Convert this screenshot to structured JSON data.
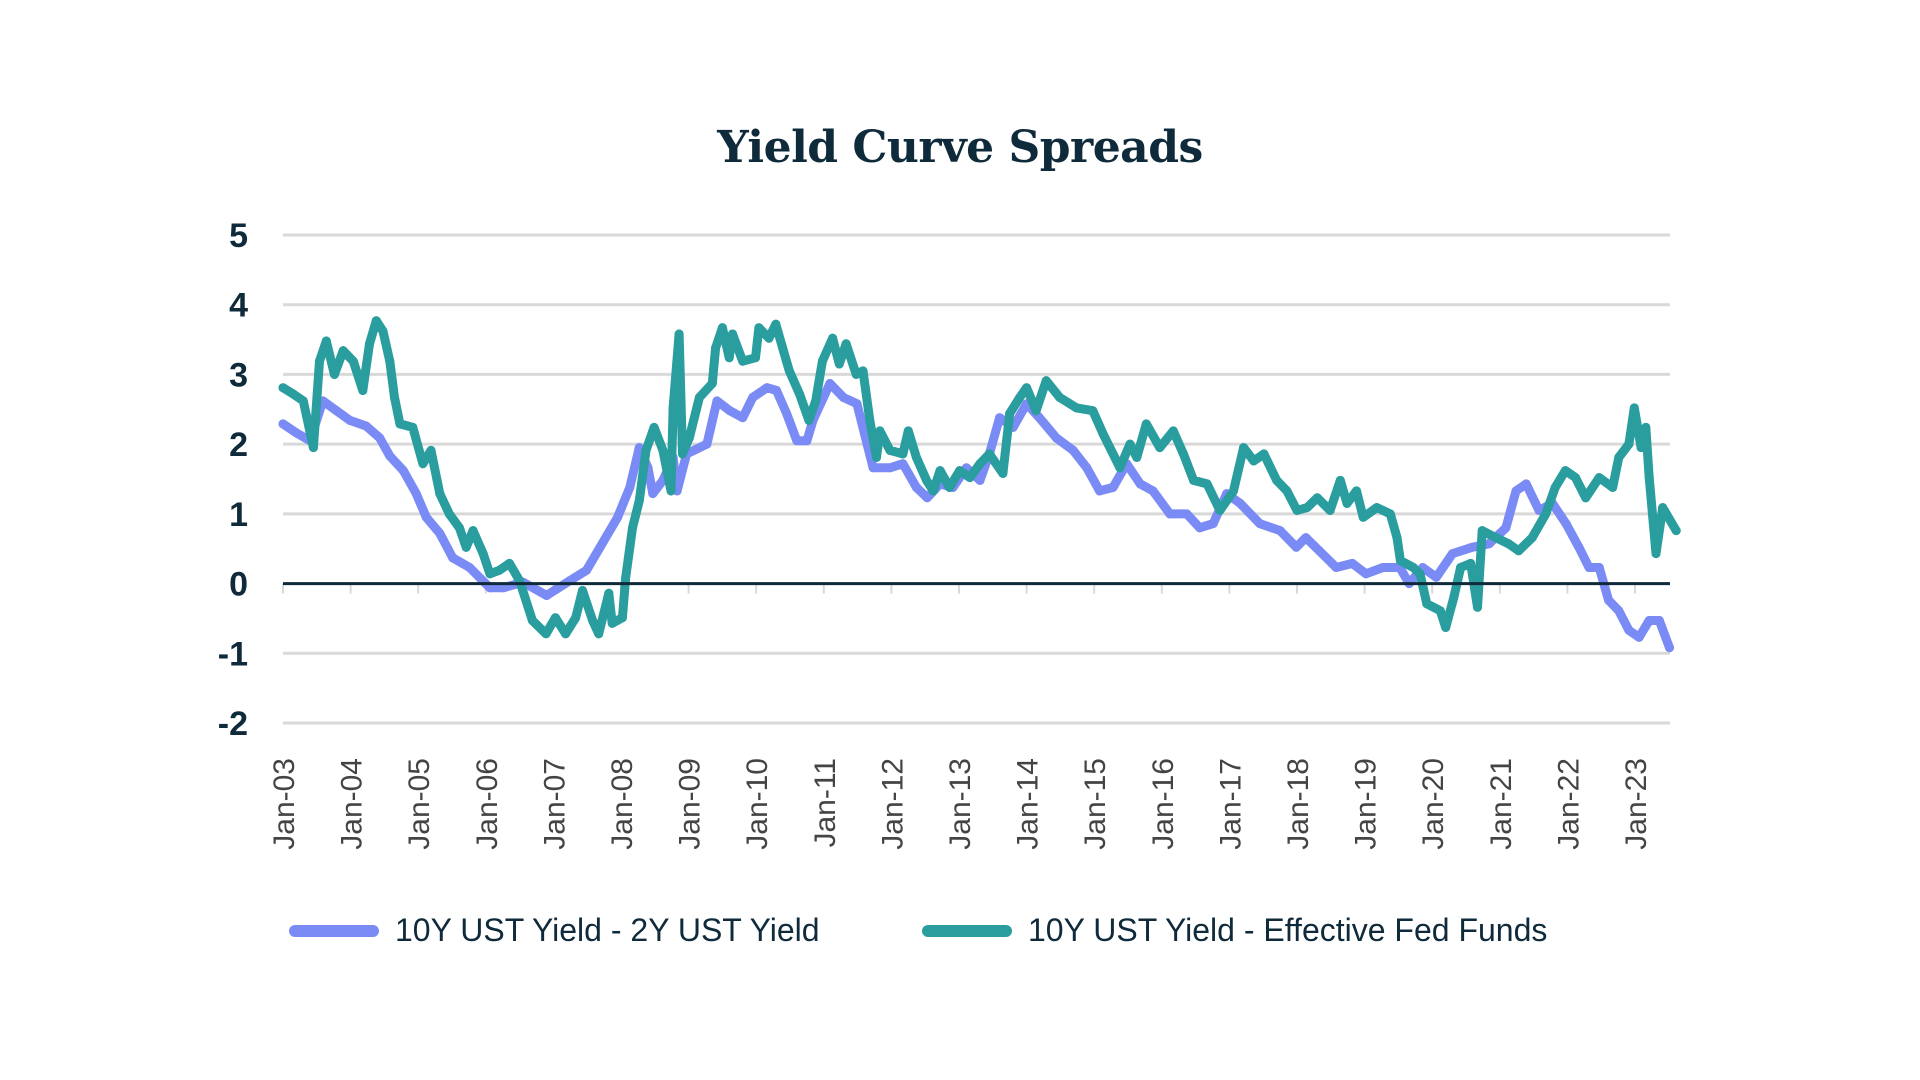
{
  "chart_data": {
    "type": "line",
    "title": "Yield Curve Spreads",
    "xlabel": "",
    "ylabel": "",
    "ylim": [
      -2,
      5
    ],
    "xlim": [
      2003.0,
      2023.55
    ],
    "yticks": [
      "5",
      "4",
      "3",
      "2",
      "1",
      "0",
      "-1",
      "-2"
    ],
    "ytick_values": [
      5,
      4,
      3,
      2,
      1,
      0,
      -1,
      -2
    ],
    "xticks": [
      "Jan-03",
      "Jan-04",
      "Jan-05",
      "Jan-06",
      "Jan-07",
      "Jan-08",
      "Jan-09",
      "Jan-10",
      "Jan-11",
      "Jan-12",
      "Jan-13",
      "Jan-14",
      "Jan-15",
      "Jan-16",
      "Jan-17",
      "Jan-18",
      "Jan-19",
      "Jan-20",
      "Jan-21",
      "Jan-22",
      "Jan-23"
    ],
    "xtick_values": [
      2003,
      2004,
      2005,
      2006,
      2007,
      2008,
      2009,
      2010,
      2011,
      2012,
      2013,
      2014,
      2015,
      2016,
      2017,
      2018,
      2019,
      2020,
      2021,
      2022,
      2023
    ],
    "grid": true,
    "zero_line": true,
    "legend_position": "bottom",
    "series": [
      {
        "name": "10Y UST Yield - 2Y UST Yield",
        "color": "#7B8BF5",
        "points": [
          [
            2003.0,
            2.29
          ],
          [
            2003.2,
            2.16
          ],
          [
            2003.4,
            2.05
          ],
          [
            2003.59,
            2.62
          ],
          [
            2003.79,
            2.48
          ],
          [
            2003.99,
            2.34
          ],
          [
            2004.23,
            2.26
          ],
          [
            2004.43,
            2.09
          ],
          [
            2004.58,
            1.83
          ],
          [
            2004.78,
            1.62
          ],
          [
            2004.97,
            1.29
          ],
          [
            2005.12,
            0.95
          ],
          [
            2005.32,
            0.72
          ],
          [
            2005.51,
            0.37
          ],
          [
            2005.76,
            0.23
          ],
          [
            2006.06,
            -0.06
          ],
          [
            2006.26,
            -0.06
          ],
          [
            2006.55,
            0.02
          ],
          [
            2006.9,
            -0.17
          ],
          [
            2007.24,
            0.04
          ],
          [
            2007.49,
            0.19
          ],
          [
            2007.69,
            0.52
          ],
          [
            2007.95,
            0.95
          ],
          [
            2008.13,
            1.38
          ],
          [
            2008.27,
            1.95
          ],
          [
            2008.4,
            1.66
          ],
          [
            2008.47,
            1.29
          ],
          [
            2008.62,
            1.48
          ],
          [
            2008.77,
            1.81
          ],
          [
            2008.83,
            1.33
          ],
          [
            2008.97,
            1.86
          ],
          [
            2009.27,
            2.0
          ],
          [
            2009.42,
            2.62
          ],
          [
            2009.61,
            2.48
          ],
          [
            2009.8,
            2.38
          ],
          [
            2009.95,
            2.67
          ],
          [
            2010.16,
            2.81
          ],
          [
            2010.3,
            2.77
          ],
          [
            2010.45,
            2.44
          ],
          [
            2010.6,
            2.05
          ],
          [
            2010.75,
            2.05
          ],
          [
            2010.84,
            2.34
          ],
          [
            2011.09,
            2.87
          ],
          [
            2011.29,
            2.67
          ],
          [
            2011.49,
            2.58
          ],
          [
            2011.64,
            2.0
          ],
          [
            2011.73,
            1.66
          ],
          [
            2011.98,
            1.66
          ],
          [
            2012.17,
            1.72
          ],
          [
            2012.37,
            1.38
          ],
          [
            2012.53,
            1.23
          ],
          [
            2012.72,
            1.43
          ],
          [
            2012.91,
            1.38
          ],
          [
            2013.11,
            1.66
          ],
          [
            2013.31,
            1.48
          ],
          [
            2013.45,
            1.86
          ],
          [
            2013.6,
            2.38
          ],
          [
            2013.8,
            2.24
          ],
          [
            2014.0,
            2.58
          ],
          [
            2014.19,
            2.38
          ],
          [
            2014.44,
            2.09
          ],
          [
            2014.69,
            1.91
          ],
          [
            2014.89,
            1.66
          ],
          [
            2015.08,
            1.33
          ],
          [
            2015.28,
            1.38
          ],
          [
            2015.48,
            1.72
          ],
          [
            2015.68,
            1.43
          ],
          [
            2015.87,
            1.33
          ],
          [
            2016.12,
            1.0
          ],
          [
            2016.37,
            1.0
          ],
          [
            2016.56,
            0.8
          ],
          [
            2016.76,
            0.86
          ],
          [
            2016.96,
            1.29
          ],
          [
            2017.16,
            1.15
          ],
          [
            2017.45,
            0.86
          ],
          [
            2017.75,
            0.76
          ],
          [
            2017.99,
            0.52
          ],
          [
            2018.13,
            0.66
          ],
          [
            2018.33,
            0.47
          ],
          [
            2018.58,
            0.23
          ],
          [
            2018.82,
            0.29
          ],
          [
            2019.02,
            0.14
          ],
          [
            2019.27,
            0.23
          ],
          [
            2019.52,
            0.23
          ],
          [
            2019.66,
            0.0
          ],
          [
            2019.86,
            0.23
          ],
          [
            2020.06,
            0.09
          ],
          [
            2020.3,
            0.43
          ],
          [
            2020.59,
            0.52
          ],
          [
            2020.84,
            0.57
          ],
          [
            2021.09,
            0.8
          ],
          [
            2021.24,
            1.33
          ],
          [
            2021.39,
            1.43
          ],
          [
            2021.58,
            1.05
          ],
          [
            2021.78,
            1.15
          ],
          [
            2021.98,
            0.86
          ],
          [
            2022.17,
            0.52
          ],
          [
            2022.32,
            0.23
          ],
          [
            2022.47,
            0.23
          ],
          [
            2022.61,
            -0.24
          ],
          [
            2022.76,
            -0.39
          ],
          [
            2022.91,
            -0.67
          ],
          [
            2023.06,
            -0.77
          ],
          [
            2023.21,
            -0.53
          ],
          [
            2023.36,
            -0.53
          ],
          [
            2023.51,
            -0.92
          ]
        ]
      },
      {
        "name": "10Y UST Yield - Effective Fed Funds",
        "color": "#2A9D9F",
        "points": [
          [
            2003.0,
            2.81
          ],
          [
            2003.15,
            2.72
          ],
          [
            2003.3,
            2.62
          ],
          [
            2003.45,
            1.95
          ],
          [
            2003.54,
            3.19
          ],
          [
            2003.64,
            3.48
          ],
          [
            2003.76,
            3.0
          ],
          [
            2003.89,
            3.34
          ],
          [
            2004.04,
            3.19
          ],
          [
            2004.18,
            2.77
          ],
          [
            2004.28,
            3.44
          ],
          [
            2004.38,
            3.77
          ],
          [
            2004.48,
            3.62
          ],
          [
            2004.58,
            3.19
          ],
          [
            2004.65,
            2.67
          ],
          [
            2004.73,
            2.29
          ],
          [
            2004.92,
            2.24
          ],
          [
            2005.07,
            1.72
          ],
          [
            2005.19,
            1.91
          ],
          [
            2005.32,
            1.29
          ],
          [
            2005.46,
            1.0
          ],
          [
            2005.61,
            0.8
          ],
          [
            2005.71,
            0.52
          ],
          [
            2005.81,
            0.76
          ],
          [
            2005.96,
            0.43
          ],
          [
            2006.06,
            0.14
          ],
          [
            2006.2,
            0.19
          ],
          [
            2006.35,
            0.29
          ],
          [
            2006.5,
            0.04
          ],
          [
            2006.69,
            -0.53
          ],
          [
            2006.89,
            -0.72
          ],
          [
            2007.03,
            -0.49
          ],
          [
            2007.18,
            -0.72
          ],
          [
            2007.33,
            -0.49
          ],
          [
            2007.43,
            -0.1
          ],
          [
            2007.58,
            -0.53
          ],
          [
            2007.67,
            -0.72
          ],
          [
            2007.82,
            -0.14
          ],
          [
            2007.87,
            -0.57
          ],
          [
            2008.02,
            -0.49
          ],
          [
            2008.07,
            0.09
          ],
          [
            2008.17,
            0.8
          ],
          [
            2008.27,
            1.19
          ],
          [
            2008.37,
            1.91
          ],
          [
            2008.49,
            2.24
          ],
          [
            2008.62,
            1.91
          ],
          [
            2008.74,
            1.33
          ],
          [
            2008.77,
            2.52
          ],
          [
            2008.86,
            3.58
          ],
          [
            2008.91,
            1.86
          ],
          [
            2009.01,
            2.09
          ],
          [
            2009.16,
            2.67
          ],
          [
            2009.35,
            2.87
          ],
          [
            2009.4,
            3.38
          ],
          [
            2009.5,
            3.67
          ],
          [
            2009.6,
            3.24
          ],
          [
            2009.65,
            3.58
          ],
          [
            2009.8,
            3.19
          ],
          [
            2009.99,
            3.24
          ],
          [
            2010.04,
            3.67
          ],
          [
            2010.19,
            3.52
          ],
          [
            2010.29,
            3.72
          ],
          [
            2010.39,
            3.38
          ],
          [
            2010.49,
            3.05
          ],
          [
            2010.64,
            2.72
          ],
          [
            2010.78,
            2.34
          ],
          [
            2010.88,
            2.62
          ],
          [
            2010.98,
            3.19
          ],
          [
            2011.13,
            3.52
          ],
          [
            2011.23,
            3.15
          ],
          [
            2011.33,
            3.44
          ],
          [
            2011.48,
            3.0
          ],
          [
            2011.58,
            3.05
          ],
          [
            2011.68,
            2.34
          ],
          [
            2011.78,
            1.81
          ],
          [
            2011.83,
            2.19
          ],
          [
            2011.98,
            1.91
          ],
          [
            2012.17,
            1.86
          ],
          [
            2012.25,
            2.19
          ],
          [
            2012.37,
            1.81
          ],
          [
            2012.52,
            1.48
          ],
          [
            2012.62,
            1.33
          ],
          [
            2012.72,
            1.62
          ],
          [
            2012.86,
            1.38
          ],
          [
            2013.01,
            1.62
          ],
          [
            2013.16,
            1.52
          ],
          [
            2013.31,
            1.72
          ],
          [
            2013.45,
            1.86
          ],
          [
            2013.65,
            1.58
          ],
          [
            2013.75,
            2.44
          ],
          [
            2013.9,
            2.67
          ],
          [
            2014.0,
            2.81
          ],
          [
            2014.14,
            2.48
          ],
          [
            2014.29,
            2.91
          ],
          [
            2014.49,
            2.67
          ],
          [
            2014.74,
            2.52
          ],
          [
            2014.98,
            2.48
          ],
          [
            2015.13,
            2.15
          ],
          [
            2015.38,
            1.66
          ],
          [
            2015.53,
            2.0
          ],
          [
            2015.63,
            1.81
          ],
          [
            2015.77,
            2.29
          ],
          [
            2015.97,
            1.95
          ],
          [
            2016.17,
            2.19
          ],
          [
            2016.32,
            1.86
          ],
          [
            2016.47,
            1.48
          ],
          [
            2016.67,
            1.43
          ],
          [
            2016.86,
            1.05
          ],
          [
            2017.06,
            1.33
          ],
          [
            2017.21,
            1.95
          ],
          [
            2017.36,
            1.76
          ],
          [
            2017.51,
            1.86
          ],
          [
            2017.7,
            1.48
          ],
          [
            2017.85,
            1.33
          ],
          [
            2018.0,
            1.05
          ],
          [
            2018.15,
            1.09
          ],
          [
            2018.3,
            1.23
          ],
          [
            2018.49,
            1.05
          ],
          [
            2018.64,
            1.48
          ],
          [
            2018.74,
            1.15
          ],
          [
            2018.88,
            1.33
          ],
          [
            2018.98,
            0.95
          ],
          [
            2019.18,
            1.09
          ],
          [
            2019.38,
            1.0
          ],
          [
            2019.48,
            0.66
          ],
          [
            2019.53,
            0.33
          ],
          [
            2019.72,
            0.23
          ],
          [
            2019.82,
            0.14
          ],
          [
            2019.92,
            -0.29
          ],
          [
            2020.12,
            -0.39
          ],
          [
            2020.2,
            -0.63
          ],
          [
            2020.32,
            -0.2
          ],
          [
            2020.42,
            0.23
          ],
          [
            2020.57,
            0.29
          ],
          [
            2020.67,
            -0.34
          ],
          [
            2020.74,
            0.76
          ],
          [
            2020.94,
            0.66
          ],
          [
            2021.13,
            0.57
          ],
          [
            2021.28,
            0.47
          ],
          [
            2021.48,
            0.66
          ],
          [
            2021.68,
            1.0
          ],
          [
            2021.82,
            1.38
          ],
          [
            2021.97,
            1.62
          ],
          [
            2022.12,
            1.52
          ],
          [
            2022.27,
            1.23
          ],
          [
            2022.47,
            1.52
          ],
          [
            2022.67,
            1.38
          ],
          [
            2022.76,
            1.81
          ],
          [
            2022.91,
            2.0
          ],
          [
            2022.99,
            2.52
          ],
          [
            2023.09,
            1.95
          ],
          [
            2023.16,
            2.24
          ],
          [
            2023.21,
            1.52
          ],
          [
            2023.31,
            0.43
          ],
          [
            2023.41,
            1.09
          ],
          [
            2023.61,
            0.76
          ]
        ]
      }
    ]
  }
}
